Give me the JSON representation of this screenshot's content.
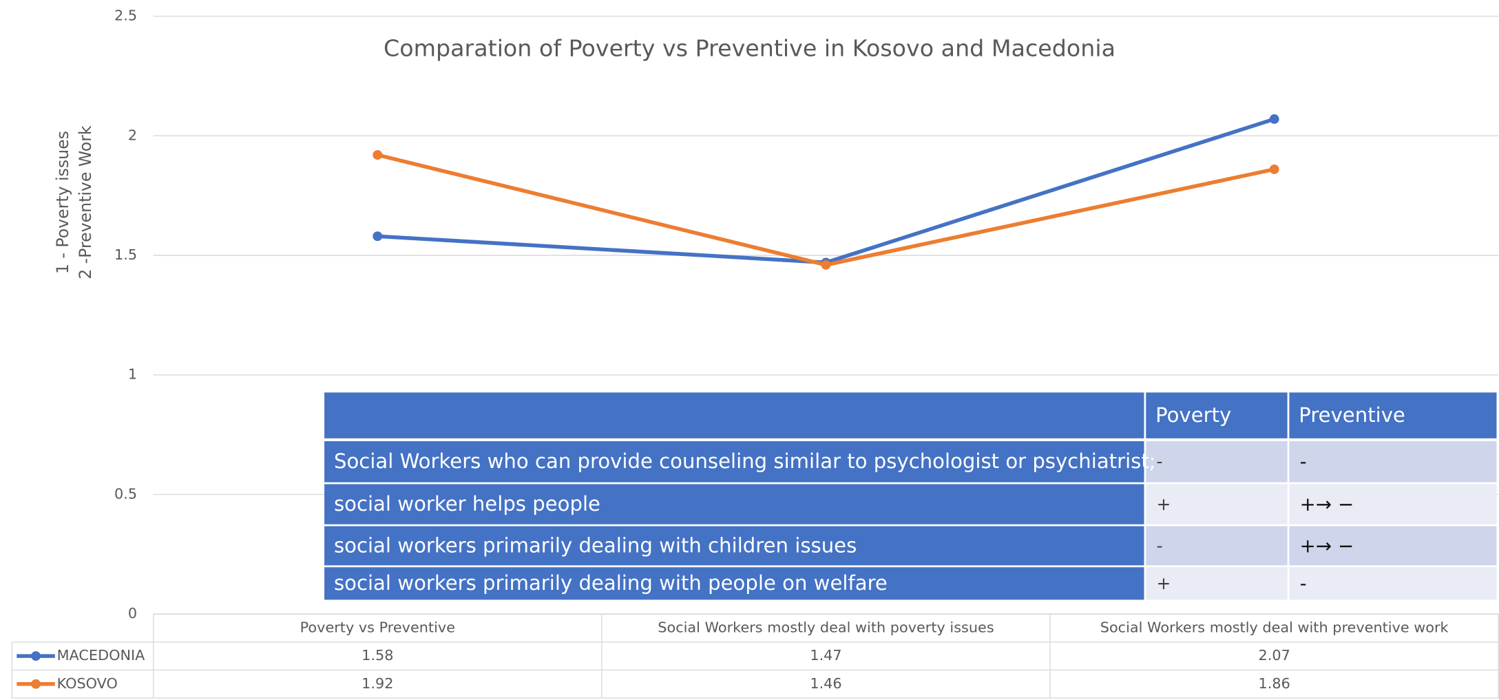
{
  "chart_data": {
    "type": "line",
    "title": "Comparation of Poverty vs Preventive in Kosovo and Macedonia",
    "y_label": [
      "1 - Poverty issues",
      "2 -Preventive Work"
    ],
    "categories": [
      "Poverty vs Preventive",
      "Social Workers mostly deal with poverty issues",
      "Social Workers mostly deal with preventive work"
    ],
    "series": [
      {
        "name": "MACEDONIA",
        "color": "#4472c4",
        "values": [
          1.58,
          1.47,
          2.07
        ]
      },
      {
        "name": "KOSOVO",
        "color": "#ed7d31",
        "values": [
          1.92,
          1.46,
          1.86
        ]
      }
    ],
    "ylim": [
      0,
      2.5
    ],
    "yticks": [
      0,
      0.5,
      1,
      1.5,
      2,
      2.5
    ],
    "grid": true,
    "data_table": true
  },
  "table": {
    "columns": [
      "Poverty",
      "Preventive"
    ],
    "rows": [
      {
        "label": "Social Workers who can provide counseling similar to psychologist or psychiatrist;",
        "poverty": "-",
        "preventive": "-"
      },
      {
        "label": "social worker helps people",
        "poverty": "+",
        "preventive": "+→ −"
      },
      {
        "label": "social workers primarily dealing with children issues",
        "poverty": "-",
        "preventive": "+→ −"
      },
      {
        "label": "social workers primarily dealing with people on welfare",
        "poverty": "+",
        "preventive": "-"
      }
    ]
  }
}
